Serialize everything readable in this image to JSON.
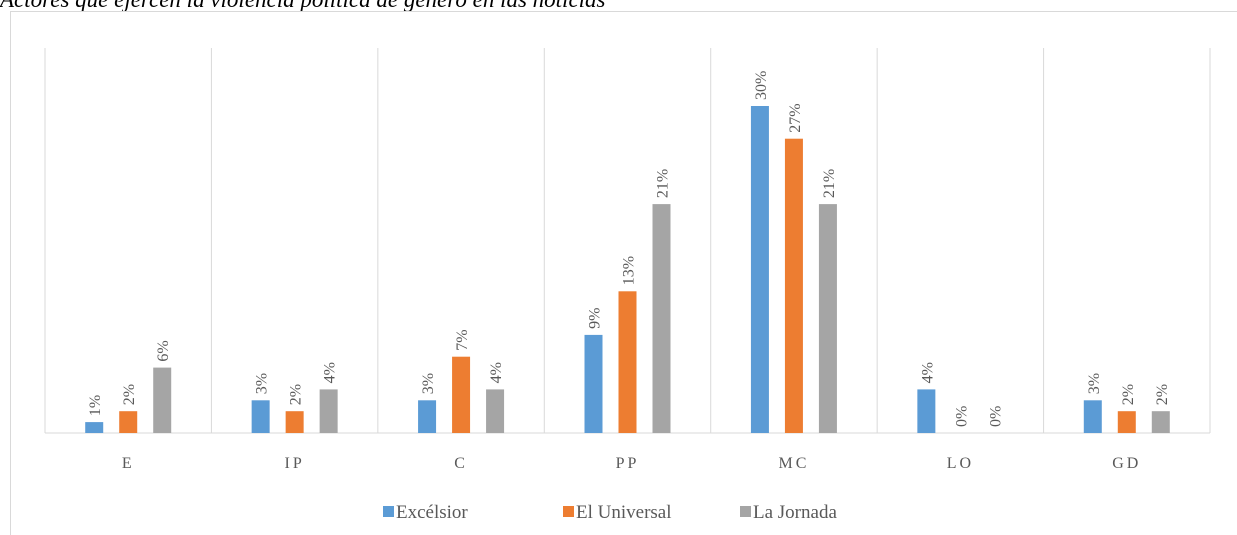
{
  "caption": "Actores que ejercen la violencia política de género en las noticias",
  "chart_data": {
    "type": "bar",
    "title": "",
    "categories": [
      "E",
      "IP",
      "C",
      "PP",
      "MC",
      "LO",
      "GD"
    ],
    "series": [
      {
        "name": "Excélsior",
        "color": "#5b9bd5",
        "values": [
          1,
          3,
          3,
          9,
          30,
          4,
          3
        ]
      },
      {
        "name": "El Universal",
        "color": "#ed7d31",
        "values": [
          2,
          2,
          7,
          13,
          27,
          0,
          2
        ]
      },
      {
        "name": "La Jornada",
        "color": "#a5a5a5",
        "values": [
          6,
          4,
          4,
          21,
          21,
          0,
          2
        ]
      }
    ],
    "value_suffix": "%",
    "ylim": [
      0,
      35
    ],
    "grid": "vertical separators between categories",
    "legend_position": "bottom"
  }
}
